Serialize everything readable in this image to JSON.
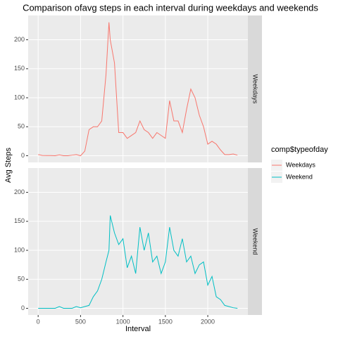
{
  "chart_data": {
    "type": "line",
    "title": "Comparison ofavg steps in each interval during weekdays and weekends",
    "x_label": "Interval",
    "y_label": "Avg Steps",
    "legend_title": "comp$typeofday",
    "x": [
      0,
      50,
      100,
      150,
      200,
      250,
      300,
      350,
      400,
      450,
      500,
      550,
      600,
      650,
      700,
      750,
      800,
      835,
      850,
      900,
      950,
      1000,
      1050,
      1100,
      1150,
      1200,
      1250,
      1300,
      1350,
      1400,
      1450,
      1500,
      1550,
      1600,
      1650,
      1700,
      1750,
      1800,
      1850,
      1900,
      1950,
      2000,
      2050,
      2100,
      2150,
      2200,
      2250,
      2300,
      2350
    ],
    "series": [
      {
        "name": "Weekdays",
        "color": "#F8766D",
        "values": [
          2,
          0.5,
          0.4,
          0.3,
          0,
          1.5,
          0,
          0,
          1,
          2,
          0,
          8,
          45,
          50,
          50,
          60,
          140,
          230,
          200,
          160,
          40,
          40,
          30,
          35,
          40,
          60,
          45,
          40,
          30,
          40,
          35,
          30,
          95,
          60,
          60,
          40,
          80,
          115,
          100,
          70,
          50,
          20,
          25,
          20,
          10,
          2,
          2,
          3,
          1
        ]
      },
      {
        "name": "Weekend",
        "color": "#00BFC4",
        "values": [
          0,
          0,
          0,
          0,
          0,
          3,
          0,
          0,
          0,
          3,
          1,
          3,
          5,
          20,
          30,
          50,
          80,
          100,
          160,
          130,
          110,
          120,
          70,
          90,
          60,
          140,
          100,
          130,
          80,
          90,
          60,
          80,
          140,
          100,
          90,
          120,
          80,
          90,
          60,
          75,
          80,
          40,
          55,
          20,
          15,
          5,
          3,
          1,
          0
        ]
      }
    ],
    "xlim": [
      -117.75,
      2472.75
    ],
    "xticks": [
      0,
      500,
      1000,
      1500,
      2000
    ],
    "ylim": [
      -11.5,
      241.9
    ],
    "yticks": [
      0,
      50,
      100,
      150,
      200
    ],
    "grid": true,
    "facet": "rows",
    "legend_position": "right"
  }
}
